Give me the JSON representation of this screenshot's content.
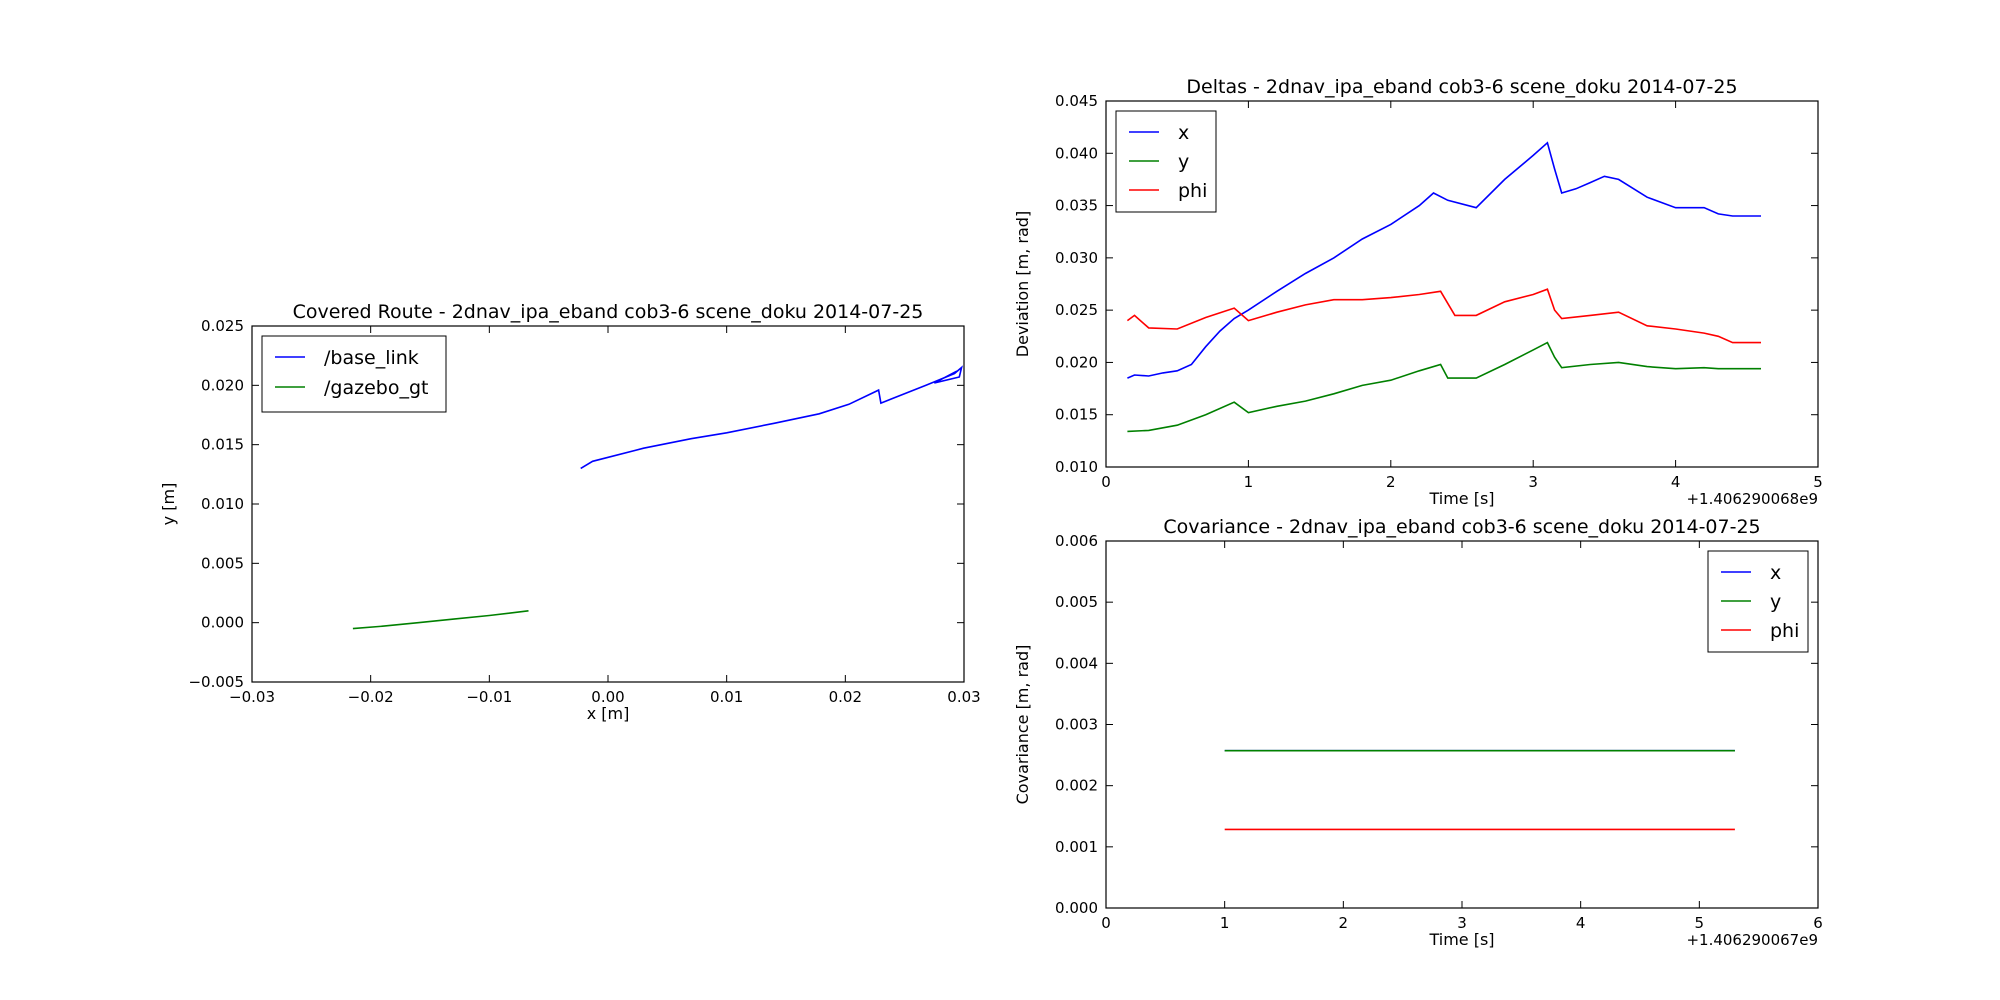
{
  "chart_data": [
    {
      "type": "line",
      "title": "Covered Route - 2dnav_ipa_eband cob3-6 scene_doku 2014-07-25",
      "xlabel": "x [m]",
      "ylabel": "y [m]",
      "xlim": [
        -0.03,
        0.03
      ],
      "ylim": [
        -0.005,
        0.025
      ],
      "xticks": [
        "−0.03",
        "−0.02",
        "−0.01",
        "0.00",
        "0.01",
        "0.02",
        "0.03"
      ],
      "yticks": [
        "−0.005",
        "0.000",
        "0.005",
        "0.010",
        "0.015",
        "0.020",
        "0.025"
      ],
      "legend_loc": "upper left",
      "offset_text": "",
      "series": [
        {
          "name": "/base_link",
          "color": "#0000ff",
          "x": [
            -0.0023,
            -0.0013,
            0.003,
            0.007,
            0.01,
            0.014,
            0.0178,
            0.0203,
            0.0228,
            0.023,
            0.0268,
            0.0292,
            0.0298,
            0.0296,
            0.0275,
            0.0294
          ],
          "y": [
            0.013,
            0.0136,
            0.0147,
            0.0155,
            0.016,
            0.0168,
            0.0176,
            0.0184,
            0.0196,
            0.0185,
            0.02,
            0.021,
            0.0215,
            0.0207,
            0.0202,
            0.0212
          ]
        },
        {
          "name": "/gazebo_gt",
          "color": "#008000",
          "x": [
            -0.0215,
            -0.019,
            -0.016,
            -0.013,
            -0.01,
            -0.0067
          ],
          "y": [
            -0.0005,
            -0.0003,
            0.0,
            0.0003,
            0.0006,
            0.001
          ]
        }
      ]
    },
    {
      "type": "line",
      "title": "Deltas - 2dnav_ipa_eband cob3-6 scene_doku 2014-07-25",
      "xlabel": "Time [s]",
      "ylabel": "Deviation [m, rad]",
      "xlim": [
        0,
        5
      ],
      "ylim": [
        0.01,
        0.045
      ],
      "xticks": [
        "0",
        "1",
        "2",
        "3",
        "4",
        "5"
      ],
      "yticks": [
        "0.010",
        "0.015",
        "0.020",
        "0.025",
        "0.030",
        "0.035",
        "0.040",
        "0.045"
      ],
      "legend_loc": "upper left",
      "offset_text": "+1.406290068e9",
      "series": [
        {
          "name": "x",
          "color": "#0000ff",
          "x": [
            0.15,
            0.2,
            0.3,
            0.4,
            0.5,
            0.6,
            0.7,
            0.8,
            0.9,
            1.0,
            1.2,
            1.4,
            1.6,
            1.8,
            2.0,
            2.2,
            2.3,
            2.4,
            2.6,
            2.8,
            3.0,
            3.1,
            3.15,
            3.2,
            3.3,
            3.4,
            3.5,
            3.6,
            3.8,
            4.0,
            4.2,
            4.3,
            4.4,
            4.6
          ],
          "y": [
            0.0185,
            0.0188,
            0.0187,
            0.019,
            0.0192,
            0.0198,
            0.0215,
            0.023,
            0.0242,
            0.025,
            0.0268,
            0.0285,
            0.03,
            0.0318,
            0.0332,
            0.035,
            0.0362,
            0.0355,
            0.0348,
            0.0375,
            0.0398,
            0.041,
            0.0385,
            0.0362,
            0.0366,
            0.0372,
            0.0378,
            0.0375,
            0.0358,
            0.0348,
            0.0348,
            0.0342,
            0.034,
            0.034
          ]
        },
        {
          "name": "y",
          "color": "#008000",
          "x": [
            0.15,
            0.3,
            0.5,
            0.7,
            0.9,
            1.0,
            1.2,
            1.4,
            1.6,
            1.8,
            2.0,
            2.2,
            2.35,
            2.4,
            2.6,
            2.8,
            3.0,
            3.1,
            3.15,
            3.2,
            3.4,
            3.6,
            3.8,
            4.0,
            4.2,
            4.3,
            4.4,
            4.6
          ],
          "y": [
            0.0134,
            0.0135,
            0.014,
            0.015,
            0.0162,
            0.0152,
            0.0158,
            0.0163,
            0.017,
            0.0178,
            0.0183,
            0.0192,
            0.0198,
            0.0185,
            0.0185,
            0.0198,
            0.0212,
            0.0219,
            0.0205,
            0.0195,
            0.0198,
            0.02,
            0.0196,
            0.0194,
            0.0195,
            0.0194,
            0.0194,
            0.0194
          ]
        },
        {
          "name": "phi",
          "color": "#ff0000",
          "x": [
            0.15,
            0.2,
            0.3,
            0.5,
            0.7,
            0.9,
            1.0,
            1.2,
            1.4,
            1.6,
            1.8,
            2.0,
            2.2,
            2.35,
            2.45,
            2.6,
            2.8,
            3.0,
            3.1,
            3.15,
            3.2,
            3.4,
            3.6,
            3.8,
            4.0,
            4.2,
            4.3,
            4.4,
            4.6
          ],
          "y": [
            0.024,
            0.0245,
            0.0233,
            0.0232,
            0.0243,
            0.0252,
            0.024,
            0.0248,
            0.0255,
            0.026,
            0.026,
            0.0262,
            0.0265,
            0.0268,
            0.0245,
            0.0245,
            0.0258,
            0.0265,
            0.027,
            0.025,
            0.0242,
            0.0245,
            0.0248,
            0.0235,
            0.0232,
            0.0228,
            0.0225,
            0.0219,
            0.0219
          ]
        }
      ]
    },
    {
      "type": "line",
      "title": "Covariance - 2dnav_ipa_eband cob3-6 scene_doku 2014-07-25",
      "xlabel": "Time [s]",
      "ylabel": "Covariance [m, rad]",
      "xlim": [
        0,
        6
      ],
      "ylim": [
        -0.0005,
        0.0065
      ],
      "xticks": [
        "0",
        "1",
        "2",
        "3",
        "4",
        "5",
        "6"
      ],
      "yticks": [
        "0.000",
        "0.001",
        "0.002",
        "0.003",
        "0.004",
        "0.005",
        "0.006"
      ],
      "legend_loc": "upper right",
      "offset_text": "+1.406290067e9",
      "series": [
        {
          "name": "x",
          "color": "#0000ff",
          "x": [
            1.0,
            5.3
          ],
          "y": [
            0.0025,
            0.0025
          ]
        },
        {
          "name": "y",
          "color": "#008000",
          "x": [
            1.0,
            5.3
          ],
          "y": [
            0.0025,
            0.0025
          ]
        },
        {
          "name": "phi",
          "color": "#ff0000",
          "x": [
            1.0,
            5.3
          ],
          "y": [
            0.001,
            0.001
          ]
        }
      ]
    }
  ]
}
